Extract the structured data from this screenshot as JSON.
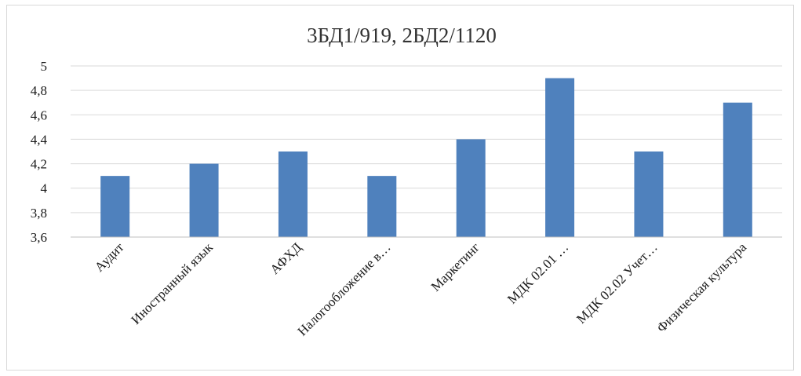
{
  "chart_data": {
    "type": "bar",
    "title": "3БД1/919, 2БД2/1120",
    "xlabel": "",
    "ylabel": "",
    "categories": [
      "Аудит",
      "Иностранный язык",
      "АФХД",
      "Налогообложение в…",
      "Маркетинг",
      "МДК 02.01 …",
      "МДК 02.02 Учет…",
      "Физическая культура"
    ],
    "values": [
      4.1,
      4.2,
      4.3,
      4.1,
      4.4,
      4.9,
      4.3,
      4.7
    ],
    "ylim": [
      3.6,
      5
    ],
    "yticks": [
      "3,6",
      "3,8",
      "4",
      "4,2",
      "4,4",
      "4,6",
      "4,8",
      "5"
    ],
    "grid": true,
    "legend": "none",
    "colors": {
      "bar": "#4F81BD",
      "grid": "#d9d9d9",
      "axis": "#bfbfbf",
      "text": "#1a1a1a"
    }
  }
}
